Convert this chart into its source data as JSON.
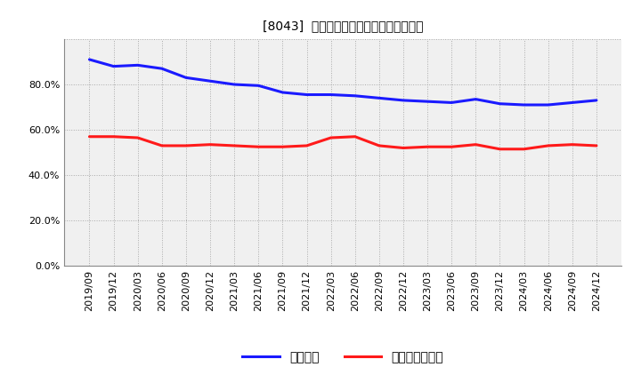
{
  "title": "[8043]  固定比率、固定長期適合率の推移",
  "blue_label": "固定比率",
  "red_label": "固定長期適合率",
  "x_labels": [
    "2019/09",
    "2019/12",
    "2020/03",
    "2020/06",
    "2020/09",
    "2020/12",
    "2021/03",
    "2021/06",
    "2021/09",
    "2021/12",
    "2022/03",
    "2022/06",
    "2022/09",
    "2022/12",
    "2023/03",
    "2023/06",
    "2023/09",
    "2023/12",
    "2024/03",
    "2024/06",
    "2024/09",
    "2024/12"
  ],
  "blue_values": [
    91.0,
    88.0,
    88.5,
    87.0,
    83.0,
    81.5,
    80.0,
    79.5,
    76.5,
    75.5,
    75.5,
    75.0,
    74.0,
    73.0,
    72.5,
    72.0,
    73.5,
    71.5,
    71.0,
    71.0,
    72.0,
    73.0
  ],
  "red_values": [
    57.0,
    57.0,
    56.5,
    53.0,
    53.0,
    53.5,
    53.0,
    52.5,
    52.5,
    53.0,
    56.5,
    57.0,
    53.0,
    52.0,
    52.5,
    52.5,
    53.5,
    51.5,
    51.5,
    53.0,
    53.5,
    53.0
  ],
  "ylim": [
    0,
    100
  ],
  "yticks": [
    0,
    20,
    40,
    60,
    80,
    100
  ],
  "ytick_labels": [
    "0.0%",
    "20.0%",
    "40.0%",
    "60.0%",
    "80.0%",
    ""
  ],
  "blue_color": "#1a1aff",
  "red_color": "#ff1a1a",
  "bg_color": "#ffffff",
  "plot_bg_color": "#f0f0f0",
  "grid_color": "#aaaaaa",
  "title_fontsize": 12,
  "legend_fontsize": 10,
  "tick_fontsize": 8
}
